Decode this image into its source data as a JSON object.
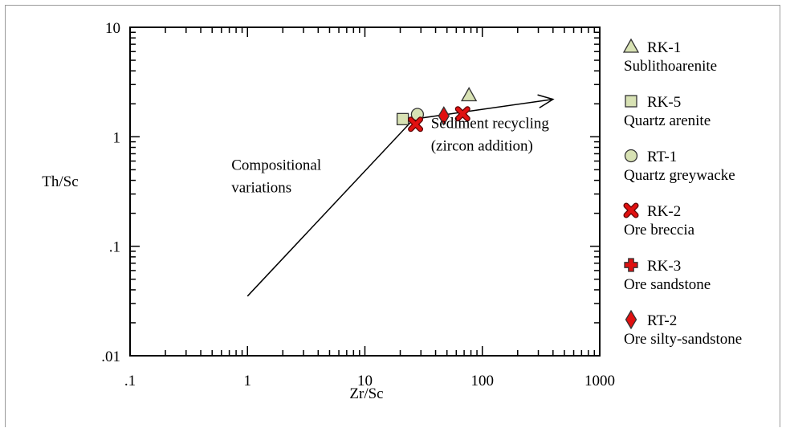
{
  "chart_data": {
    "type": "scatter",
    "title": "",
    "xlabel": "Zr/Sc",
    "ylabel": "Th/Sc",
    "xscale": "log",
    "yscale": "log",
    "xlim": [
      0.1,
      1000
    ],
    "ylim": [
      0.01,
      10
    ],
    "x_tick_labels": [
      ".1",
      "1",
      "10",
      "100",
      "1000"
    ],
    "y_tick_labels": [
      ".01",
      ".1",
      "1",
      "10"
    ],
    "grid": false,
    "legend_position": "right",
    "series": [
      {
        "name": "RK-1",
        "description": "Sublithoarenite",
        "marker": "triangle",
        "color": "#d8e2b4",
        "x": [
          77
        ],
        "y": [
          2.4
        ]
      },
      {
        "name": "RK-5",
        "description": "Quartz arenite",
        "marker": "square",
        "color": "#d8e2b4",
        "x": [
          21
        ],
        "y": [
          1.45
        ]
      },
      {
        "name": "RT-1",
        "description": "Quartz greywacke",
        "marker": "circle",
        "color": "#d8e2b4",
        "x": [
          28
        ],
        "y": [
          1.6
        ]
      },
      {
        "name": "RK-2",
        "description": "Ore breccia",
        "marker": "x",
        "color": "#e01010",
        "x": [
          27,
          68
        ],
        "y": [
          1.3,
          1.62
        ]
      },
      {
        "name": "RK-3",
        "description": "Ore sandstone",
        "marker": "plus",
        "color": "#e01010",
        "x": [],
        "y": []
      },
      {
        "name": "RT-2",
        "description": "Ore silty-sandstone",
        "marker": "diamond",
        "color": "#e01010",
        "x": [
          47
        ],
        "y": [
          1.55
        ]
      }
    ],
    "trend_line": {
      "points": [
        [
          1,
          0.035
        ],
        [
          26,
          1.45
        ],
        [
          400,
          2.2
        ]
      ],
      "arrow": true
    },
    "annotations": [
      {
        "lines": [
          "Compositional",
          "variations"
        ],
        "x": 1,
        "y": 0.5
      },
      {
        "lines": [
          "Sediment recycling",
          "(zircon addition)"
        ],
        "x": 50,
        "y": 1.2
      }
    ]
  }
}
